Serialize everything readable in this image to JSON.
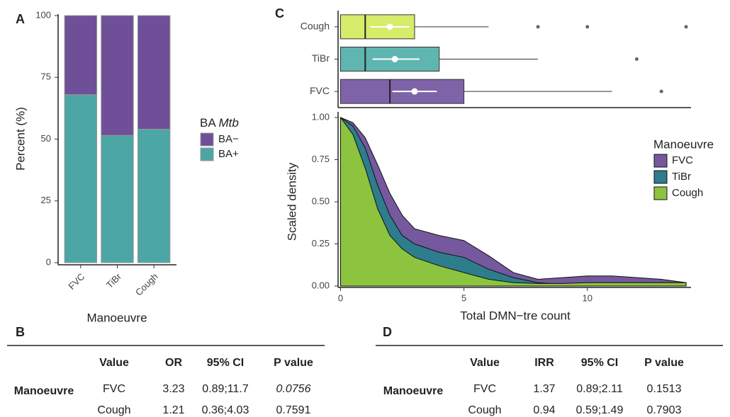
{
  "panel_labels": [
    "A",
    "B",
    "C",
    "D"
  ],
  "chart_data": [
    {
      "type": "bar",
      "stacked": true,
      "categories": [
        "FVC",
        "TiBr",
        "Cough"
      ],
      "series": [
        {
          "name": "BA−",
          "color": "#6e4f98",
          "values": [
            32,
            48.5,
            46
          ]
        },
        {
          "name": "BA+",
          "color": "#4ba6a5",
          "values": [
            68,
            51.5,
            54
          ]
        }
      ],
      "ylim": [
        0,
        100
      ],
      "yticks": [
        0,
        25,
        50,
        75,
        100
      ],
      "x_label": "Manoeuvre",
      "y_label": "Percent (%)",
      "legend_title": [
        "BA",
        "Mtb"
      ]
    },
    {
      "type": "box",
      "xlim": [
        -0.1,
        14.2
      ],
      "boxes": [
        {
          "name": "Cough",
          "color": "#d6ec6a",
          "min": 0,
          "q1": 0,
          "median": 1,
          "q3": 3,
          "max": 6,
          "outliers": [
            8,
            10,
            14
          ],
          "mean": 2.0,
          "mean_ci": [
            1.2,
            2.8
          ]
        },
        {
          "name": "TiBr",
          "color": "#5fb5b0",
          "min": 0,
          "q1": 0,
          "median": 1,
          "q3": 4,
          "max": 8,
          "outliers": [
            12
          ],
          "mean": 2.2,
          "mean_ci": [
            1.3,
            3.2
          ]
        },
        {
          "name": "FVC",
          "color": "#7e63a8",
          "min": 0,
          "q1": 0,
          "median": 2,
          "q3": 5,
          "max": 11,
          "outliers": [
            13
          ],
          "mean": 3.0,
          "mean_ci": [
            2.1,
            3.9
          ]
        }
      ]
    },
    {
      "type": "area",
      "xlim": [
        -0.1,
        14.2
      ],
      "ylim": [
        0,
        1
      ],
      "xticks": [
        0,
        5,
        10
      ],
      "yticks": [
        {
          "value": 0,
          "label": "0.00"
        },
        {
          "value": 0.25,
          "label": "0.25"
        },
        {
          "value": 0.5,
          "label": "0.50"
        },
        {
          "value": 0.75,
          "label": "0.75"
        },
        {
          "value": 1,
          "label": "1.00"
        }
      ],
      "x": [
        0,
        0.5,
        1,
        1.5,
        2,
        2.5,
        3,
        4,
        5,
        6,
        7,
        8,
        9,
        10,
        11,
        12,
        13,
        14
      ],
      "series": [
        {
          "name": "FVC",
          "color": "#76589f",
          "values": [
            1,
            0.97,
            0.88,
            0.72,
            0.55,
            0.42,
            0.34,
            0.3,
            0.27,
            0.18,
            0.08,
            0.04,
            0.05,
            0.06,
            0.06,
            0.05,
            0.04,
            0.02
          ]
        },
        {
          "name": "TiBr",
          "color": "#2d7d8c",
          "values": [
            1,
            0.95,
            0.82,
            0.6,
            0.42,
            0.3,
            0.25,
            0.2,
            0.17,
            0.1,
            0.05,
            0.02,
            0.01,
            0.005,
            0.01,
            0.02,
            0.02,
            0.02
          ]
        },
        {
          "name": "Cough",
          "color": "#8dc43f",
          "values": [
            1,
            0.9,
            0.7,
            0.46,
            0.3,
            0.22,
            0.17,
            0.12,
            0.08,
            0.04,
            0.02,
            0.015,
            0.015,
            0.02,
            0.02,
            0.02,
            0.02,
            0.02
          ]
        }
      ],
      "x_label": "Total DMN−tre count",
      "y_label": "Scaled density",
      "legend_title": "Manoeuvre"
    }
  ],
  "tables": [
    {
      "columns": [
        "Value",
        "OR",
        "95% CI",
        "P value"
      ],
      "group": "Manoeuvre",
      "rows": [
        [
          "FVC",
          "3.23",
          "0.89;11.7",
          "0.0756"
        ],
        [
          "Cough",
          "1.21",
          "0.36;4.03",
          "0.7591"
        ]
      ]
    },
    {
      "columns": [
        "Value",
        "IRR",
        "95% CI",
        "P value"
      ],
      "group": "Manoeuvre",
      "rows": [
        [
          "FVC",
          "1.37",
          "0.89;2.11",
          "0.1513"
        ],
        [
          "Cough",
          "0.94",
          "0.59;1.49",
          "0.7903"
        ]
      ]
    }
  ]
}
